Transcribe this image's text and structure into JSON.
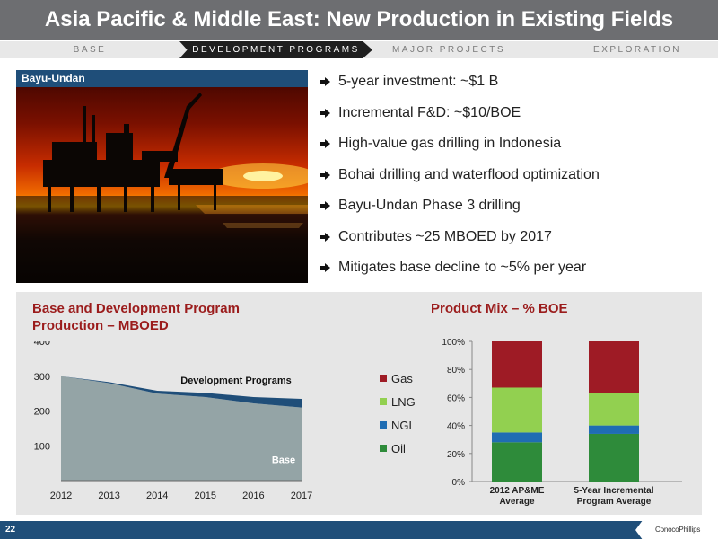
{
  "title": "Asia Pacific & Middle East: New Production in Existing Fields",
  "nav": {
    "tabs": [
      {
        "label": "BASE",
        "active": false
      },
      {
        "label": "DEVELOPMENT PROGRAMS",
        "active": true
      },
      {
        "label": "MAJOR PROJECTS",
        "active": false
      },
      {
        "label": "EXPLORATION",
        "active": false
      }
    ]
  },
  "photo": {
    "label": "Bayu-Undan"
  },
  "bullets": [
    "5-year investment: ~$1 B",
    "Incremental F&D: ~$10/BOE",
    "High-value gas drilling in Indonesia",
    "Bohai drilling and waterflood optimization",
    "Bayu-Undan Phase 3 drilling",
    "Contributes ~25 MBOED by 2017",
    "Mitigates base decline to ~5% per year"
  ],
  "bullet_icon": "arrow-right-icon",
  "colors": {
    "title_bar": "#6d6e71",
    "accent_blue": "#1f4e79",
    "chart_title": "#9b1c1c",
    "base_area": "#94a4a6",
    "dev_area": "#1f4e79",
    "gas": "#9e1b25",
    "lng": "#92d050",
    "ngl": "#1f6db3",
    "oil": "#2e8b3a"
  },
  "chart_data": [
    {
      "type": "area",
      "title": "Base and Development Program Production – MBOED",
      "x": [
        2012,
        2013,
        2014,
        2015,
        2016,
        2017
      ],
      "series": [
        {
          "name": "Base",
          "values": [
            300,
            280,
            250,
            240,
            222,
            210
          ]
        },
        {
          "name": "Development Programs",
          "values": [
            0,
            3,
            8,
            12,
            18,
            25
          ]
        }
      ],
      "stacked": true,
      "y_ticks": [
        100,
        200,
        300,
        400
      ],
      "ylim": [
        0,
        400
      ],
      "xlabel": "",
      "ylabel": ""
    },
    {
      "type": "bar",
      "title": "Product Mix – % BOE",
      "stacked": true,
      "categories": [
        "2012 AP&ME Average",
        "5-Year Incremental Program Average"
      ],
      "series": [
        {
          "name": "Oil",
          "values": [
            28,
            34
          ]
        },
        {
          "name": "NGL",
          "values": [
            7,
            6
          ]
        },
        {
          "name": "LNG",
          "values": [
            32,
            23
          ]
        },
        {
          "name": "Gas",
          "values": [
            33,
            37
          ]
        }
      ],
      "y_ticks": [
        "0%",
        "20%",
        "40%",
        "60%",
        "80%",
        "100%"
      ],
      "ylim": [
        0,
        100
      ],
      "legend": [
        "Gas",
        "LNG",
        "NGL",
        "Oil"
      ],
      "legend_position": "left"
    }
  ],
  "footer": {
    "page_number": "22",
    "logo": "ConocoPhillips"
  }
}
